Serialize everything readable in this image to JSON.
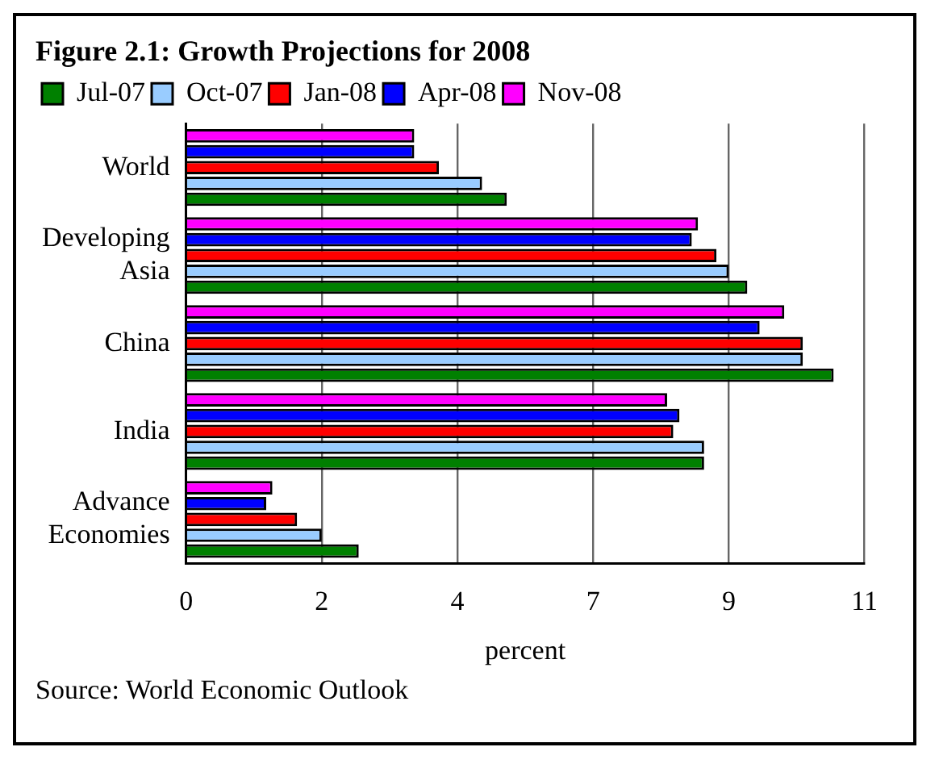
{
  "chart_data": {
    "type": "bar",
    "orientation": "horizontal",
    "title": "Figure 2.1: Growth Projections for 2008",
    "xlabel": "percent",
    "categories": [
      "World",
      "Developing Asia",
      "China",
      "India",
      "Advance Economies"
    ],
    "series": [
      {
        "name": "Jul-07",
        "color": "#008000",
        "values": [
          5.2,
          9.1,
          10.5,
          8.4,
          2.8
        ]
      },
      {
        "name": "Oct-07",
        "color": "#99ccff",
        "values": [
          4.8,
          8.8,
          10.0,
          8.4,
          2.2
        ]
      },
      {
        "name": "Jan-08",
        "color": "#ff0000",
        "values": [
          4.1,
          8.6,
          10.0,
          7.9,
          1.8
        ]
      },
      {
        "name": "Apr-08",
        "color": "#0000ff",
        "values": [
          3.7,
          8.2,
          9.3,
          8.0,
          1.3
        ]
      },
      {
        "name": "Nov-08",
        "color": "#ff00ff",
        "values": [
          3.7,
          8.3,
          9.7,
          7.8,
          1.4
        ]
      }
    ],
    "xlim": [
      0,
      11
    ],
    "xticks": [
      0,
      {
        "value": 2.2,
        "label": "2"
      },
      {
        "value": 4.4,
        "label": "4"
      },
      {
        "value": 6.6,
        "label": "7"
      },
      {
        "value": 8.8,
        "label": "9"
      },
      11
    ],
    "grid": "x",
    "legend": "top left",
    "annotations": [
      "Source: World Economic Outlook"
    ]
  }
}
